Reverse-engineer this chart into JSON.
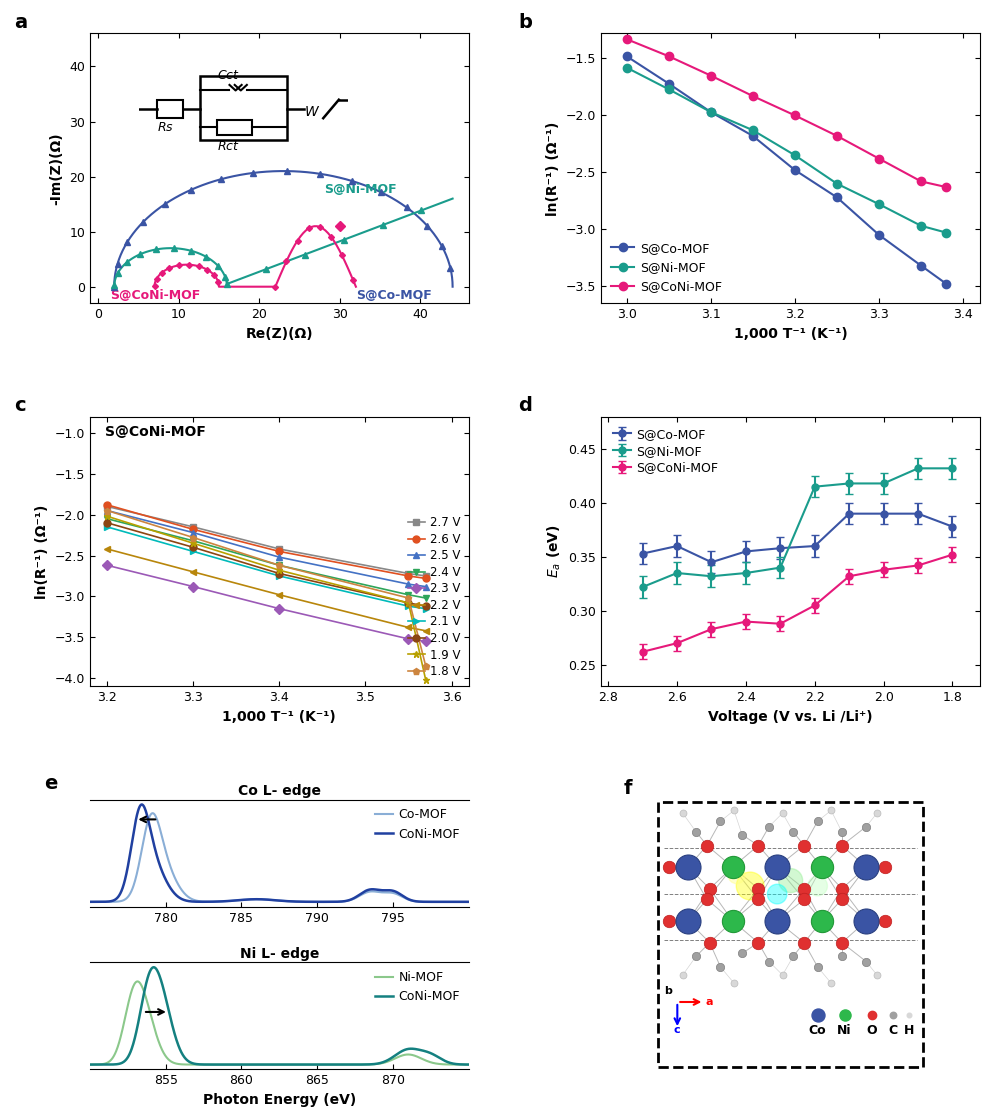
{
  "panel_a": {
    "xlabel": "Re(Z)(Ω)",
    "ylabel": "-Im(Z)(Ω)",
    "xlim": [
      -1,
      46
    ],
    "ylim": [
      -3,
      46
    ],
    "yticks": [
      0,
      10,
      20,
      30,
      40
    ],
    "xticks": [
      0,
      10,
      20,
      30,
      40
    ],
    "colors": {
      "SCo": "#3A54A4",
      "SNi": "#1A9C8C",
      "SCoNi": "#E6197A"
    }
  },
  "panel_b": {
    "xlabel": "1,000 T⁻¹ (K⁻¹)",
    "ylabel": "ln(R⁻¹) (Ω⁻¹)",
    "xlim": [
      2.97,
      3.42
    ],
    "ylim": [
      -3.65,
      -1.28
    ],
    "xticks": [
      3.0,
      3.1,
      3.2,
      3.3,
      3.4
    ],
    "yticks": [
      -3.5,
      -3.0,
      -2.5,
      -2.0,
      -1.5
    ],
    "colors": {
      "SCo": "#3A54A4",
      "SNi": "#1A9C8C",
      "SCoNi": "#E6197A"
    },
    "SCo_x": [
      3.0,
      3.05,
      3.1,
      3.15,
      3.2,
      3.25,
      3.3,
      3.35,
      3.38
    ],
    "SCo_y": [
      -1.48,
      -1.72,
      -1.97,
      -2.18,
      -2.48,
      -2.72,
      -3.05,
      -3.32,
      -3.48
    ],
    "SNi_x": [
      3.0,
      3.05,
      3.1,
      3.15,
      3.2,
      3.25,
      3.3,
      3.35,
      3.38
    ],
    "SNi_y": [
      -1.58,
      -1.77,
      -1.97,
      -2.13,
      -2.35,
      -2.6,
      -2.78,
      -2.97,
      -3.03
    ],
    "SCoNi_x": [
      3.0,
      3.05,
      3.1,
      3.15,
      3.2,
      3.25,
      3.3,
      3.35,
      3.38
    ],
    "SCoNi_y": [
      -1.33,
      -1.48,
      -1.65,
      -1.83,
      -2.0,
      -2.18,
      -2.38,
      -2.58,
      -2.63
    ]
  },
  "panel_c": {
    "label": "S@CoNi-MOF",
    "xlabel": "1,000 T⁻¹ (K⁻¹)",
    "ylabel": "ln(R⁻¹) (Ω⁻¹)",
    "xlim": [
      3.18,
      3.62
    ],
    "ylim": [
      -4.1,
      -0.8
    ],
    "xticks": [
      3.2,
      3.3,
      3.4,
      3.5,
      3.6
    ],
    "yticks": [
      -4.0,
      -3.5,
      -3.0,
      -2.5,
      -2.0,
      -1.5,
      -1.0
    ],
    "voltages": [
      "2.7 V",
      "2.6 V",
      "2.5 V",
      "2.4 V",
      "2.3 V",
      "2.2 V",
      "2.1 V",
      "2.0 V",
      "1.9 V",
      "1.8 V"
    ],
    "colors": [
      "#888888",
      "#E05020",
      "#4472C4",
      "#2EA55A",
      "#9B59B6",
      "#B8860B",
      "#00BABA",
      "#8B4513",
      "#B8A000",
      "#CD853F"
    ],
    "markers": [
      "s",
      "o",
      "^",
      "v",
      "D",
      "<",
      ">",
      "o",
      "*",
      "p"
    ],
    "x_vals": [
      3.2,
      3.3,
      3.4,
      3.55,
      3.57
    ],
    "y_vals_per_voltage": [
      [
        -1.9,
        -2.15,
        -2.42,
        -2.72,
        -2.75
      ],
      [
        -1.88,
        -2.18,
        -2.45,
        -2.75,
        -2.78
      ],
      [
        -1.95,
        -2.22,
        -2.52,
        -2.85,
        -2.88
      ],
      [
        -2.05,
        -2.32,
        -2.62,
        -2.98,
        -3.02
      ],
      [
        -2.62,
        -2.88,
        -3.15,
        -3.52,
        -3.55
      ],
      [
        -2.42,
        -2.7,
        -2.98,
        -3.38,
        -3.42
      ],
      [
        -2.15,
        -2.45,
        -2.75,
        -3.12,
        -3.15
      ],
      [
        -2.1,
        -2.4,
        -2.72,
        -3.08,
        -3.12
      ],
      [
        -2.02,
        -2.35,
        -2.68,
        -3.08,
        -4.02
      ],
      [
        -1.95,
        -2.28,
        -2.62,
        -3.02,
        -3.85
      ]
    ]
  },
  "panel_d": {
    "xlabel": "Voltage (V vs. Li /Li⁺)",
    "ylabel": "Ea (eV)",
    "xlim": [
      2.82,
      1.72
    ],
    "ylim": [
      0.23,
      0.48
    ],
    "xticks": [
      2.8,
      2.6,
      2.4,
      2.2,
      2.0,
      1.8
    ],
    "yticks": [
      0.25,
      0.3,
      0.35,
      0.4,
      0.45
    ],
    "colors": {
      "SCo": "#3A54A4",
      "SNi": "#1A9C8C",
      "SCoNi": "#E6197A"
    },
    "SCo_x": [
      2.7,
      2.6,
      2.5,
      2.4,
      2.3,
      2.2,
      2.1,
      2.0,
      1.9,
      1.8
    ],
    "SCo_y": [
      0.353,
      0.36,
      0.345,
      0.355,
      0.358,
      0.36,
      0.39,
      0.39,
      0.39,
      0.378
    ],
    "SCo_yerr": [
      0.01,
      0.01,
      0.01,
      0.01,
      0.01,
      0.01,
      0.01,
      0.01,
      0.01,
      0.01
    ],
    "SNi_x": [
      2.7,
      2.6,
      2.5,
      2.4,
      2.3,
      2.2,
      2.1,
      2.0,
      1.9,
      1.8
    ],
    "SNi_y": [
      0.322,
      0.335,
      0.332,
      0.335,
      0.34,
      0.415,
      0.418,
      0.418,
      0.432,
      0.432
    ],
    "SNi_yerr": [
      0.01,
      0.01,
      0.01,
      0.01,
      0.01,
      0.01,
      0.01,
      0.01,
      0.01,
      0.01
    ],
    "SCoNi_x": [
      2.7,
      2.6,
      2.5,
      2.4,
      2.3,
      2.2,
      2.1,
      2.0,
      1.9,
      1.8
    ],
    "SCoNi_y": [
      0.262,
      0.27,
      0.283,
      0.29,
      0.288,
      0.305,
      0.332,
      0.338,
      0.342,
      0.352
    ],
    "SCoNi_yerr": [
      0.007,
      0.007,
      0.007,
      0.007,
      0.007,
      0.007,
      0.007,
      0.007,
      0.007,
      0.007
    ]
  },
  "panel_e_co": {
    "title": "Co L- edge",
    "xlabel": "Photon Energy (eV)",
    "xlim": [
      775,
      800
    ],
    "xticks": [
      780,
      785,
      790,
      795
    ],
    "colors": {
      "CoMOF": "#8AAED6",
      "CoNiMOF": "#2040A0"
    }
  },
  "panel_e_ni": {
    "title": "Ni L- edge",
    "xlim": [
      850,
      875
    ],
    "xticks": [
      855,
      860,
      865,
      870
    ],
    "colors": {
      "NiMOF": "#8BC88B",
      "CoNiMOF": "#148080"
    }
  }
}
